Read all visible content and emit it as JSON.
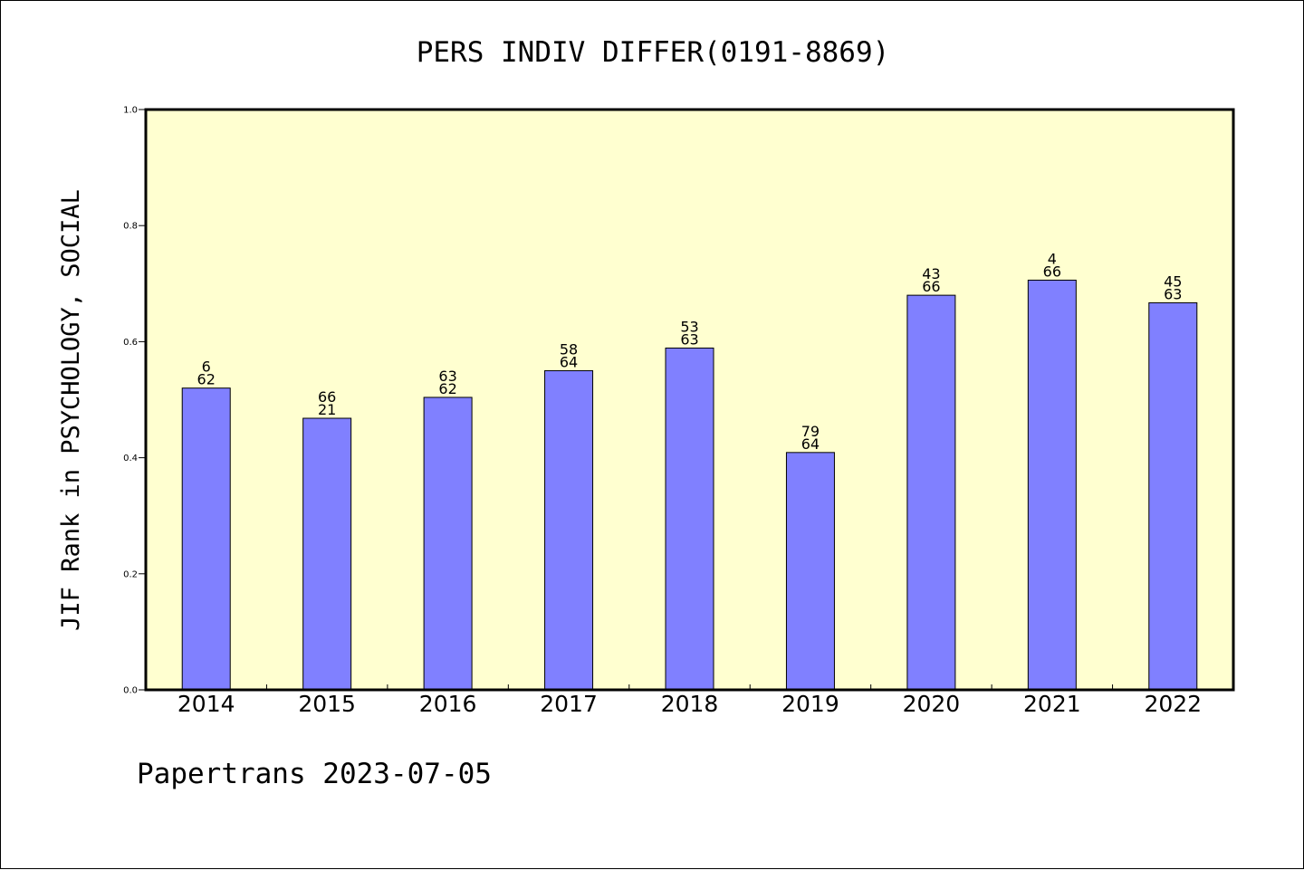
{
  "chart_data": {
    "type": "bar",
    "title": "PERS INDIV DIFFER(0191-8869)",
    "xlabel": "",
    "ylabel": "JIF Rank in PSYCHOLOGY, SOCIAL",
    "categories": [
      "2014",
      "2015",
      "2016",
      "2017",
      "2018",
      "2019",
      "2020",
      "2021",
      "2022"
    ],
    "values": [
      0.52,
      0.468,
      0.504,
      0.55,
      0.589,
      0.409,
      0.68,
      0.706,
      0.667
    ],
    "labels_top": [
      "6",
      "66",
      "63",
      "58",
      "53",
      "79",
      "43",
      "4",
      "45"
    ],
    "labels_bottom": [
      "62",
      "21",
      "62",
      "64",
      "63",
      "64",
      "66",
      "66",
      "63"
    ],
    "ylim": [
      0,
      1.0
    ],
    "yticks": [
      "0.0",
      "0.2",
      "0.4",
      "0.6",
      "0.8",
      "1.0"
    ],
    "grid": false,
    "legend": "none",
    "colors": {
      "plot_background": "#ffffd0",
      "bar_fill": "#8080ff",
      "bar_edge": "#000000"
    }
  },
  "footer": "Papertrans 2023-07-05"
}
